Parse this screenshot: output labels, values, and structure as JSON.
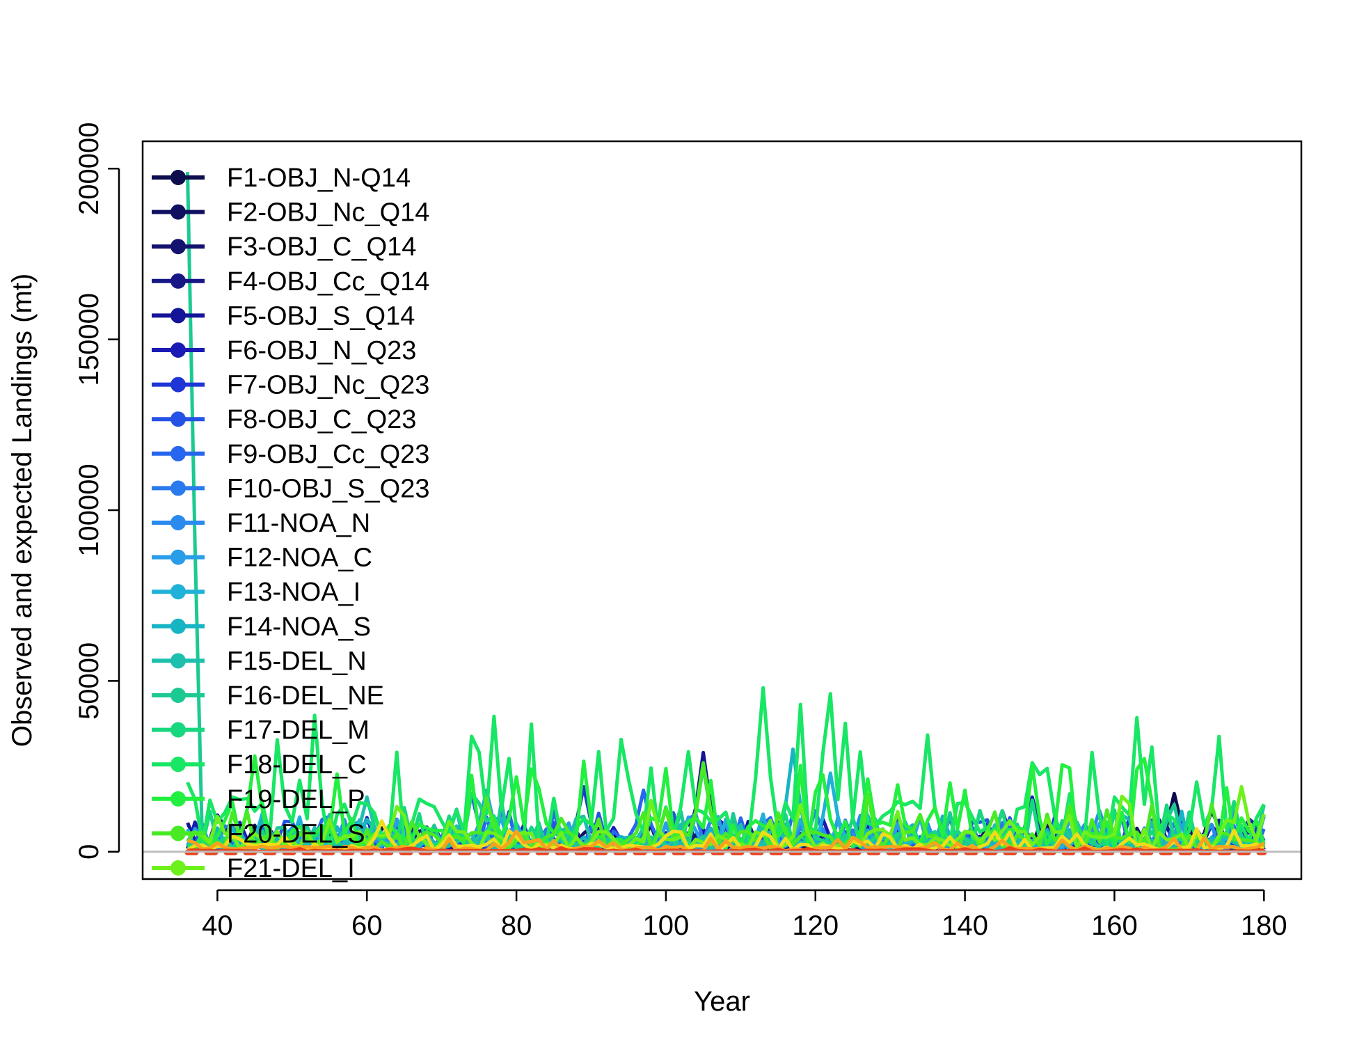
{
  "chart_data": {
    "type": "line",
    "title": "",
    "xlabel": "Year",
    "ylabel": "Observed and expected Landings (mt)",
    "xlim": [
      30,
      185
    ],
    "ylim": [
      -8000,
      208000
    ],
    "xticks": [
      40,
      60,
      80,
      100,
      120,
      140,
      160,
      180
    ],
    "yticks": [
      0,
      50000,
      100000,
      150000,
      200000
    ],
    "xtick_labels": [
      "40",
      "60",
      "80",
      "100",
      "120",
      "140",
      "160",
      "180"
    ],
    "ytick_labels": [
      "0",
      "50000",
      "100000",
      "150000",
      "200000"
    ],
    "grid": false,
    "legend_position": "top-left",
    "reference_line": {
      "y": 0,
      "color": "#bdbdbd"
    },
    "x_start": 36,
    "x_end": 180,
    "series": [
      {
        "name": "F1-OBJ_N-Q14",
        "color": "#0d0d4d",
        "peak_x": 168,
        "peak": 17000,
        "base": 1500
      },
      {
        "name": "F2-OBJ_Nc_Q14",
        "color": "#101060",
        "peak_x": 58,
        "peak": 9000,
        "base": 1500
      },
      {
        "name": "F3-OBJ_C_Q14",
        "color": "#13136f",
        "peak_x": 173,
        "peak": 12000,
        "base": 1500
      },
      {
        "name": "F4-OBJ_Cc_Q14",
        "color": "#161685",
        "peak_x": 145,
        "peak": 12000,
        "base": 1800
      },
      {
        "name": "F5-OBJ_S_Q14",
        "color": "#141498",
        "peak_x": 105,
        "peak": 29000,
        "base": 2000
      },
      {
        "name": "F6-OBJ_N_Q23",
        "color": "#1a1ab5",
        "peak_x": 149,
        "peak": 16000,
        "base": 2000
      },
      {
        "name": "F7-OBJ_Nc_Q23",
        "color": "#1f36d6",
        "peak_x": 89,
        "peak": 19000,
        "base": 2000
      },
      {
        "name": "F8-OBJ_C_Q23",
        "color": "#2552e6",
        "peak_x": 74,
        "peak": 17000,
        "base": 2200
      },
      {
        "name": "F9-OBJ_Cc_Q23",
        "color": "#2766ee",
        "peak_x": 97,
        "peak": 18000,
        "base": 2200
      },
      {
        "name": "F10-OBJ_S_Q23",
        "color": "#2a7aee",
        "peak_x": 120,
        "peak": 12000,
        "base": 2200
      },
      {
        "name": "F11-NOA_N",
        "color": "#2a8aee",
        "peak_x": 158,
        "peak": 12000,
        "base": 2000
      },
      {
        "name": "F12-NOA_C",
        "color": "#2a9de8",
        "peak_x": 76,
        "peak": 18000,
        "base": 2000
      },
      {
        "name": "F13-NOA_I",
        "color": "#1fb1d8",
        "peak_x": 122,
        "peak": 23000,
        "base": 2000
      },
      {
        "name": "F14-NOA_S",
        "color": "#17b4c3",
        "peak_x": 117,
        "peak": 30000,
        "base": 2200
      },
      {
        "name": "F15-DEL_N",
        "color": "#1ebfad",
        "peak_x": 60,
        "peak": 16000,
        "base": 2000
      },
      {
        "name": "F16-DEL_NE",
        "color": "#1cc993",
        "peak_x": 36,
        "peak": 199000,
        "base": 2500
      },
      {
        "name": "F17-DEL_M",
        "color": "#17d77f",
        "peak_x": 105,
        "peak": 25000,
        "base": 3000
      },
      {
        "name": "F18-DEL_C",
        "color": "#18e664",
        "peak_x": 113,
        "peak": 48000,
        "base": 8000
      },
      {
        "name": "F19-DEL_P",
        "color": "#22ef40",
        "peak_x": 45,
        "peak": 28000,
        "base": 5000
      },
      {
        "name": "F20-DEL_S",
        "color": "#49ea24",
        "peak_x": 105,
        "peak": 26000,
        "base": 3000
      },
      {
        "name": "F21-DEL_I",
        "color": "#6ef01c",
        "peak_x": 177,
        "peak": 19000,
        "base": 3000
      }
    ],
    "extra_series": [
      {
        "color": "#f0dd1a",
        "peak_x": 62,
        "peak": 9000,
        "base": 1200
      },
      {
        "color": "#f7a21e",
        "peak_x": 80,
        "peak": 6000,
        "base": 800
      },
      {
        "color": "#e8401c",
        "peak_x": 90,
        "peak": 800,
        "base": 200
      }
    ]
  }
}
